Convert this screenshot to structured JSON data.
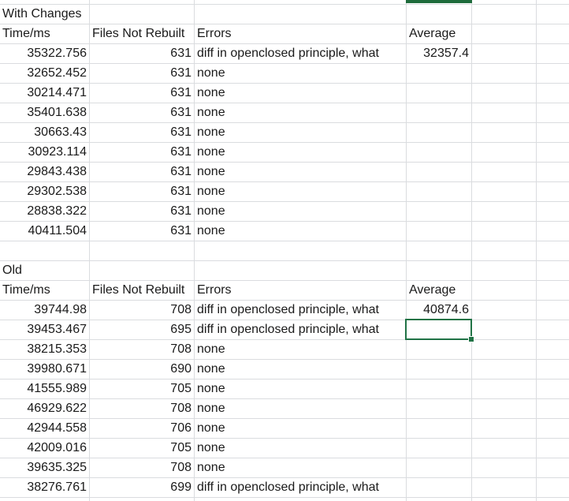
{
  "sheet": {
    "section1": {
      "title": "With Changes",
      "headers": {
        "time": "Time/ms",
        "files": "Files Not Rebuilt",
        "errors": "Errors",
        "average": "Average"
      },
      "average_value": "32357.4",
      "rows": [
        {
          "time": "35322.756",
          "files": "631",
          "errors": "diff in openclosed principle, what"
        },
        {
          "time": "32652.452",
          "files": "631",
          "errors": "none"
        },
        {
          "time": "30214.471",
          "files": "631",
          "errors": "none"
        },
        {
          "time": "35401.638",
          "files": "631",
          "errors": "none"
        },
        {
          "time": "30663.43",
          "files": "631",
          "errors": "none"
        },
        {
          "time": "30923.114",
          "files": "631",
          "errors": "none"
        },
        {
          "time": "29843.438",
          "files": "631",
          "errors": "none"
        },
        {
          "time": "29302.538",
          "files": "631",
          "errors": "none"
        },
        {
          "time": "28838.322",
          "files": "631",
          "errors": "none"
        },
        {
          "time": "40411.504",
          "files": "631",
          "errors": "none"
        }
      ]
    },
    "section2": {
      "title": "Old",
      "headers": {
        "time": "Time/ms",
        "files": "Files Not Rebuilt",
        "errors": "Errors",
        "average": "Average"
      },
      "average_value": "40874.6",
      "rows": [
        {
          "time": "39744.98",
          "files": "708",
          "errors": "diff in openclosed principle, what"
        },
        {
          "time": "39453.467",
          "files": "695",
          "errors": "diff in openclosed principle, what"
        },
        {
          "time": "38215.353",
          "files": "708",
          "errors": "none"
        },
        {
          "time": "39980.671",
          "files": "690",
          "errors": "none"
        },
        {
          "time": "41555.989",
          "files": "705",
          "errors": "none"
        },
        {
          "time": "46929.622",
          "files": "708",
          "errors": "none"
        },
        {
          "time": "42944.558",
          "files": "706",
          "errors": "none"
        },
        {
          "time": "42009.016",
          "files": "705",
          "errors": "none"
        },
        {
          "time": "39635.325",
          "files": "708",
          "errors": "none"
        },
        {
          "time": "38276.761",
          "files": "699",
          "errors": "diff in openclosed principle, what"
        }
      ]
    }
  },
  "colors": {
    "gridline": "#dadcdf",
    "selection": "#217346",
    "text": "#1a1a1a"
  }
}
